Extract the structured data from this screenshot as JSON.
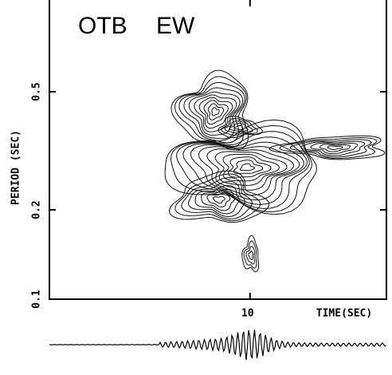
{
  "chart_data": {
    "type": "contour",
    "annotations": [
      "OTB",
      "EW"
    ],
    "x_label": "TIME(SEC)",
    "y_label": "PERIOD (SEC)",
    "xlim": [
      0,
      16.8
    ],
    "xticks": [
      10
    ],
    "ylim": [
      0.1,
      1.0
    ],
    "yticks": [
      0.1,
      0.2,
      0.5
    ],
    "y_log": true
  }
}
